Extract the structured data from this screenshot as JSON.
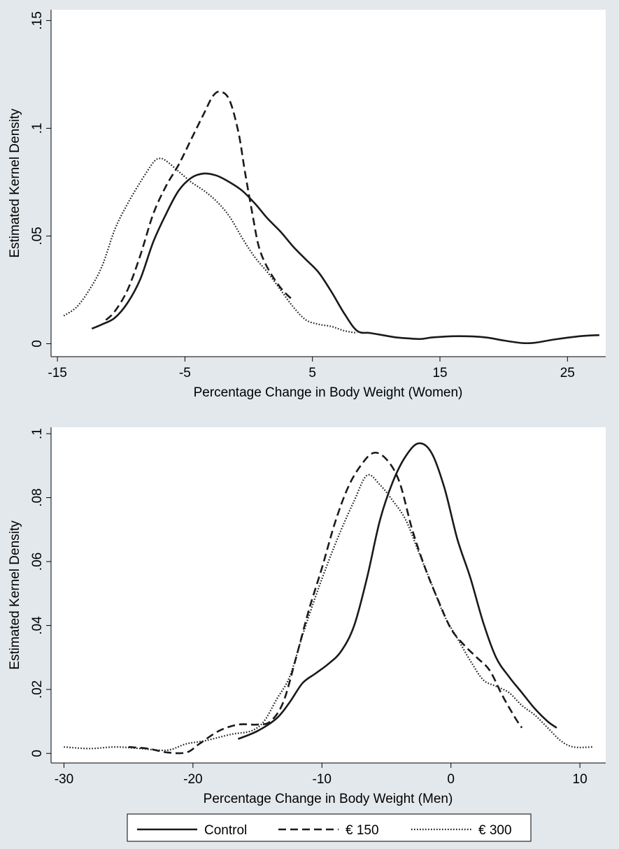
{
  "chart_data": [
    {
      "type": "line",
      "xlabel": "Percentage Change in Body Weight (Women)",
      "ylabel": "Estimated Kernel Density",
      "xlim": [
        -15.5,
        28
      ],
      "ylim": [
        -0.006,
        0.155
      ],
      "x_ticks": [
        -15,
        -5,
        5,
        15,
        25
      ],
      "x_tick_labels": [
        "-15",
        "-5",
        "5",
        "15",
        "25"
      ],
      "y_ticks": [
        0,
        0.05,
        0.1,
        0.15
      ],
      "y_tick_labels": [
        "0",
        ".05",
        ".1",
        ".15"
      ],
      "grid": false,
      "series": [
        {
          "name": "Control",
          "values": [
            [
              -12.3,
              0.007
            ],
            [
              -11.5,
              0.009
            ],
            [
              -10.5,
              0.012
            ],
            [
              -9.5,
              0.019
            ],
            [
              -8.5,
              0.03
            ],
            [
              -7.5,
              0.047
            ],
            [
              -6.5,
              0.06
            ],
            [
              -5.5,
              0.071
            ],
            [
              -4.5,
              0.077
            ],
            [
              -3.5,
              0.079
            ],
            [
              -2.5,
              0.078
            ],
            [
              -1.5,
              0.075
            ],
            [
              -0.5,
              0.071
            ],
            [
              0.5,
              0.065
            ],
            [
              1.5,
              0.058
            ],
            [
              2.5,
              0.052
            ],
            [
              3.5,
              0.045
            ],
            [
              4.5,
              0.039
            ],
            [
              5.5,
              0.033
            ],
            [
              6.5,
              0.024
            ],
            [
              7.5,
              0.014
            ],
            [
              8.5,
              0.006
            ],
            [
              9.5,
              0.005
            ],
            [
              10.5,
              0.004
            ],
            [
              11.5,
              0.003
            ],
            [
              12.5,
              0.0025
            ],
            [
              13.5,
              0.0022
            ],
            [
              14.5,
              0.003
            ],
            [
              16.5,
              0.0035
            ],
            [
              18.5,
              0.003
            ],
            [
              20,
              0.0015
            ],
            [
              21.5,
              0.0003
            ],
            [
              22.5,
              0.0005
            ],
            [
              24,
              0.002
            ],
            [
              26,
              0.0035
            ],
            [
              27.5,
              0.004
            ]
          ]
        },
        {
          "name": "€ 150",
          "values": [
            [
              -11.2,
              0.011
            ],
            [
              -10.5,
              0.015
            ],
            [
              -9.5,
              0.025
            ],
            [
              -8.5,
              0.041
            ],
            [
              -7.5,
              0.06
            ],
            [
              -6.5,
              0.073
            ],
            [
              -5.5,
              0.083
            ],
            [
              -4.5,
              0.095
            ],
            [
              -3.5,
              0.107
            ],
            [
              -2.8,
              0.115
            ],
            [
              -2.2,
              0.117
            ],
            [
              -1.5,
              0.113
            ],
            [
              -0.8,
              0.098
            ],
            [
              -0.3,
              0.08
            ],
            [
              0.3,
              0.06
            ],
            [
              0.8,
              0.045
            ],
            [
              1.5,
              0.035
            ],
            [
              2.5,
              0.026
            ],
            [
              3.5,
              0.02
            ]
          ]
        },
        {
          "name": "€ 300",
          "values": [
            [
              -14.5,
              0.013
            ],
            [
              -13.5,
              0.017
            ],
            [
              -12.5,
              0.025
            ],
            [
              -11.5,
              0.036
            ],
            [
              -10.5,
              0.053
            ],
            [
              -9.5,
              0.065
            ],
            [
              -8.5,
              0.075
            ],
            [
              -7.5,
              0.084
            ],
            [
              -7,
              0.086
            ],
            [
              -6.5,
              0.085
            ],
            [
              -5.5,
              0.08
            ],
            [
              -4.5,
              0.075
            ],
            [
              -3.5,
              0.071
            ],
            [
              -2.5,
              0.066
            ],
            [
              -1.5,
              0.059
            ],
            [
              -0.5,
              0.049
            ],
            [
              0.5,
              0.04
            ],
            [
              1.5,
              0.033
            ],
            [
              2.5,
              0.025
            ],
            [
              3.5,
              0.017
            ],
            [
              4.5,
              0.011
            ],
            [
              5.5,
              0.009
            ],
            [
              6.5,
              0.008
            ],
            [
              7.5,
              0.006
            ],
            [
              8.5,
              0.005
            ]
          ]
        }
      ]
    },
    {
      "type": "line",
      "xlabel": "Percentage Change in Body Weight (Men)",
      "ylabel": "Estimated Kernel Density",
      "xlim": [
        -31,
        12
      ],
      "ylim": [
        -0.003,
        0.102
      ],
      "x_ticks": [
        -30,
        -20,
        -10,
        0,
        10
      ],
      "x_tick_labels": [
        "-30",
        "-20",
        "-10",
        "0",
        "10"
      ],
      "y_ticks": [
        0,
        0.02,
        0.04,
        0.06,
        0.08,
        0.1
      ],
      "y_tick_labels": [
        "0",
        ".02",
        ".04",
        ".06",
        ".08",
        ".1"
      ],
      "grid": false,
      "series": [
        {
          "name": "Control",
          "values": [
            [
              -16.5,
              0.0045
            ],
            [
              -15,
              0.007
            ],
            [
              -13.5,
              0.011
            ],
            [
              -12.5,
              0.016
            ],
            [
              -11.5,
              0.022
            ],
            [
              -10.5,
              0.025
            ],
            [
              -9.5,
              0.028
            ],
            [
              -8.5,
              0.032
            ],
            [
              -7.5,
              0.04
            ],
            [
              -6.5,
              0.055
            ],
            [
              -5.5,
              0.073
            ],
            [
              -4.5,
              0.085
            ],
            [
              -3.5,
              0.093
            ],
            [
              -2.5,
              0.097
            ],
            [
              -1.5,
              0.094
            ],
            [
              -0.5,
              0.083
            ],
            [
              0.5,
              0.067
            ],
            [
              1.5,
              0.055
            ],
            [
              2.5,
              0.041
            ],
            [
              3.5,
              0.03
            ],
            [
              4.5,
              0.024
            ],
            [
              5.5,
              0.019
            ],
            [
              6.5,
              0.014
            ],
            [
              7.5,
              0.01
            ],
            [
              8.2,
              0.008
            ]
          ]
        },
        {
          "name": "€ 150",
          "values": [
            [
              -25,
              0.002
            ],
            [
              -23.5,
              0.0015
            ],
            [
              -22,
              0.0003
            ],
            [
              -20.5,
              0.0003
            ],
            [
              -19.5,
              0.003
            ],
            [
              -18,
              0.007
            ],
            [
              -16.5,
              0.009
            ],
            [
              -15,
              0.009
            ],
            [
              -14,
              0.01
            ],
            [
              -13,
              0.016
            ],
            [
              -12,
              0.03
            ],
            [
              -11,
              0.045
            ],
            [
              -10,
              0.058
            ],
            [
              -9,
              0.072
            ],
            [
              -8,
              0.083
            ],
            [
              -7,
              0.09
            ],
            [
              -6,
              0.094
            ],
            [
              -5,
              0.092
            ],
            [
              -4,
              0.085
            ],
            [
              -3,
              0.07
            ],
            [
              -2,
              0.058
            ],
            [
              -1,
              0.048
            ],
            [
              0,
              0.039
            ],
            [
              1,
              0.034
            ],
            [
              2,
              0.03
            ],
            [
              3,
              0.026
            ],
            [
              4,
              0.018
            ],
            [
              5,
              0.011
            ],
            [
              5.5,
              0.008
            ]
          ]
        },
        {
          "name": "€ 300",
          "values": [
            [
              -30,
              0.002
            ],
            [
              -28,
              0.0015
            ],
            [
              -26,
              0.002
            ],
            [
              -24,
              0.0015
            ],
            [
              -22,
              0.001
            ],
            [
              -20.5,
              0.003
            ],
            [
              -19,
              0.004
            ],
            [
              -17,
              0.006
            ],
            [
              -15.5,
              0.007
            ],
            [
              -14.5,
              0.01
            ],
            [
              -13.5,
              0.017
            ],
            [
              -12.5,
              0.024
            ],
            [
              -11.5,
              0.037
            ],
            [
              -10.5,
              0.049
            ],
            [
              -9.5,
              0.06
            ],
            [
              -8.5,
              0.07
            ],
            [
              -7.5,
              0.079
            ],
            [
              -6.5,
              0.087
            ],
            [
              -5.5,
              0.084
            ],
            [
              -4.5,
              0.079
            ],
            [
              -3.5,
              0.073
            ],
            [
              -2.5,
              0.063
            ],
            [
              -1.5,
              0.053
            ],
            [
              -0.5,
              0.043
            ],
            [
              0.5,
              0.036
            ],
            [
              1.5,
              0.029
            ],
            [
              2.5,
              0.023
            ],
            [
              3.5,
              0.021
            ],
            [
              4.5,
              0.019
            ],
            [
              5.5,
              0.015
            ],
            [
              6.5,
              0.012
            ],
            [
              7.5,
              0.008
            ],
            [
              8.5,
              0.004
            ],
            [
              9.5,
              0.002
            ],
            [
              11,
              0.002
            ]
          ]
        }
      ]
    }
  ],
  "legend": {
    "placement": "bottom",
    "items": [
      {
        "label": "Control",
        "style": "solid"
      },
      {
        "label": "€ 150",
        "style": "dashed"
      },
      {
        "label": "€ 300",
        "style": "dotted"
      }
    ]
  },
  "colors": {
    "background": "#ffffff",
    "frame": "#e3e8ec",
    "line": "#1a1a1a"
  }
}
